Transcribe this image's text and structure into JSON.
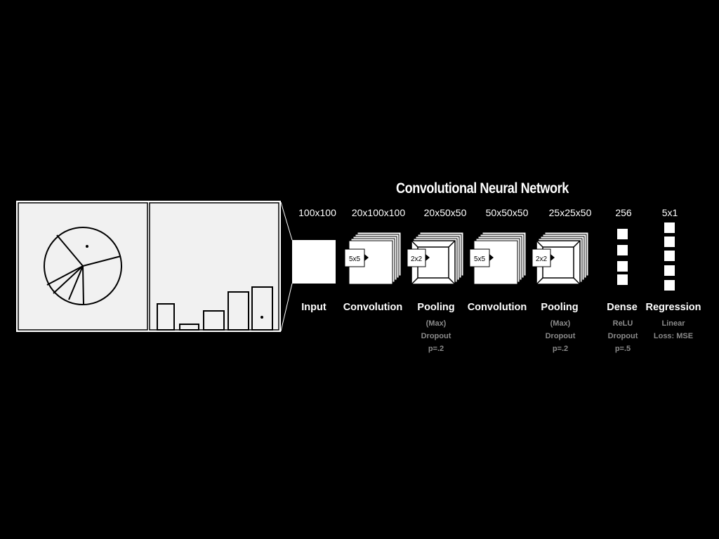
{
  "title": "Convolutional Neural Network",
  "layers": [
    {
      "id": "input",
      "name": "Input",
      "dims": "100x100",
      "notes": []
    },
    {
      "id": "conv1",
      "name": "Convolution",
      "dims": "20x100x100",
      "kernel": "5x5",
      "notes": []
    },
    {
      "id": "pool1",
      "name": "Pooling",
      "dims": "20x50x50",
      "kernel": "2x2",
      "notes": [
        "(Max)",
        "Dropout",
        "p=.2"
      ]
    },
    {
      "id": "conv2",
      "name": "Convolution",
      "dims": "50x50x50",
      "kernel": "5x5",
      "notes": []
    },
    {
      "id": "pool2",
      "name": "Pooling",
      "dims": "25x25x50",
      "kernel": "2x2",
      "notes": [
        "(Max)",
        "Dropout",
        "p=.2"
      ]
    },
    {
      "id": "dense",
      "name": "Dense",
      "dims": "256",
      "notes": [
        "ReLU",
        "Dropout",
        "p=.5"
      ]
    },
    {
      "id": "regression",
      "name": "Regression",
      "dims": "5x1",
      "notes": [
        "Linear",
        "Loss: MSE"
      ]
    }
  ],
  "colors": {
    "background": "#000000",
    "foreground": "#ffffff",
    "muted": "#8a8a8a"
  },
  "input_images": [
    "pie-chart-image",
    "bar-chart-image"
  ]
}
